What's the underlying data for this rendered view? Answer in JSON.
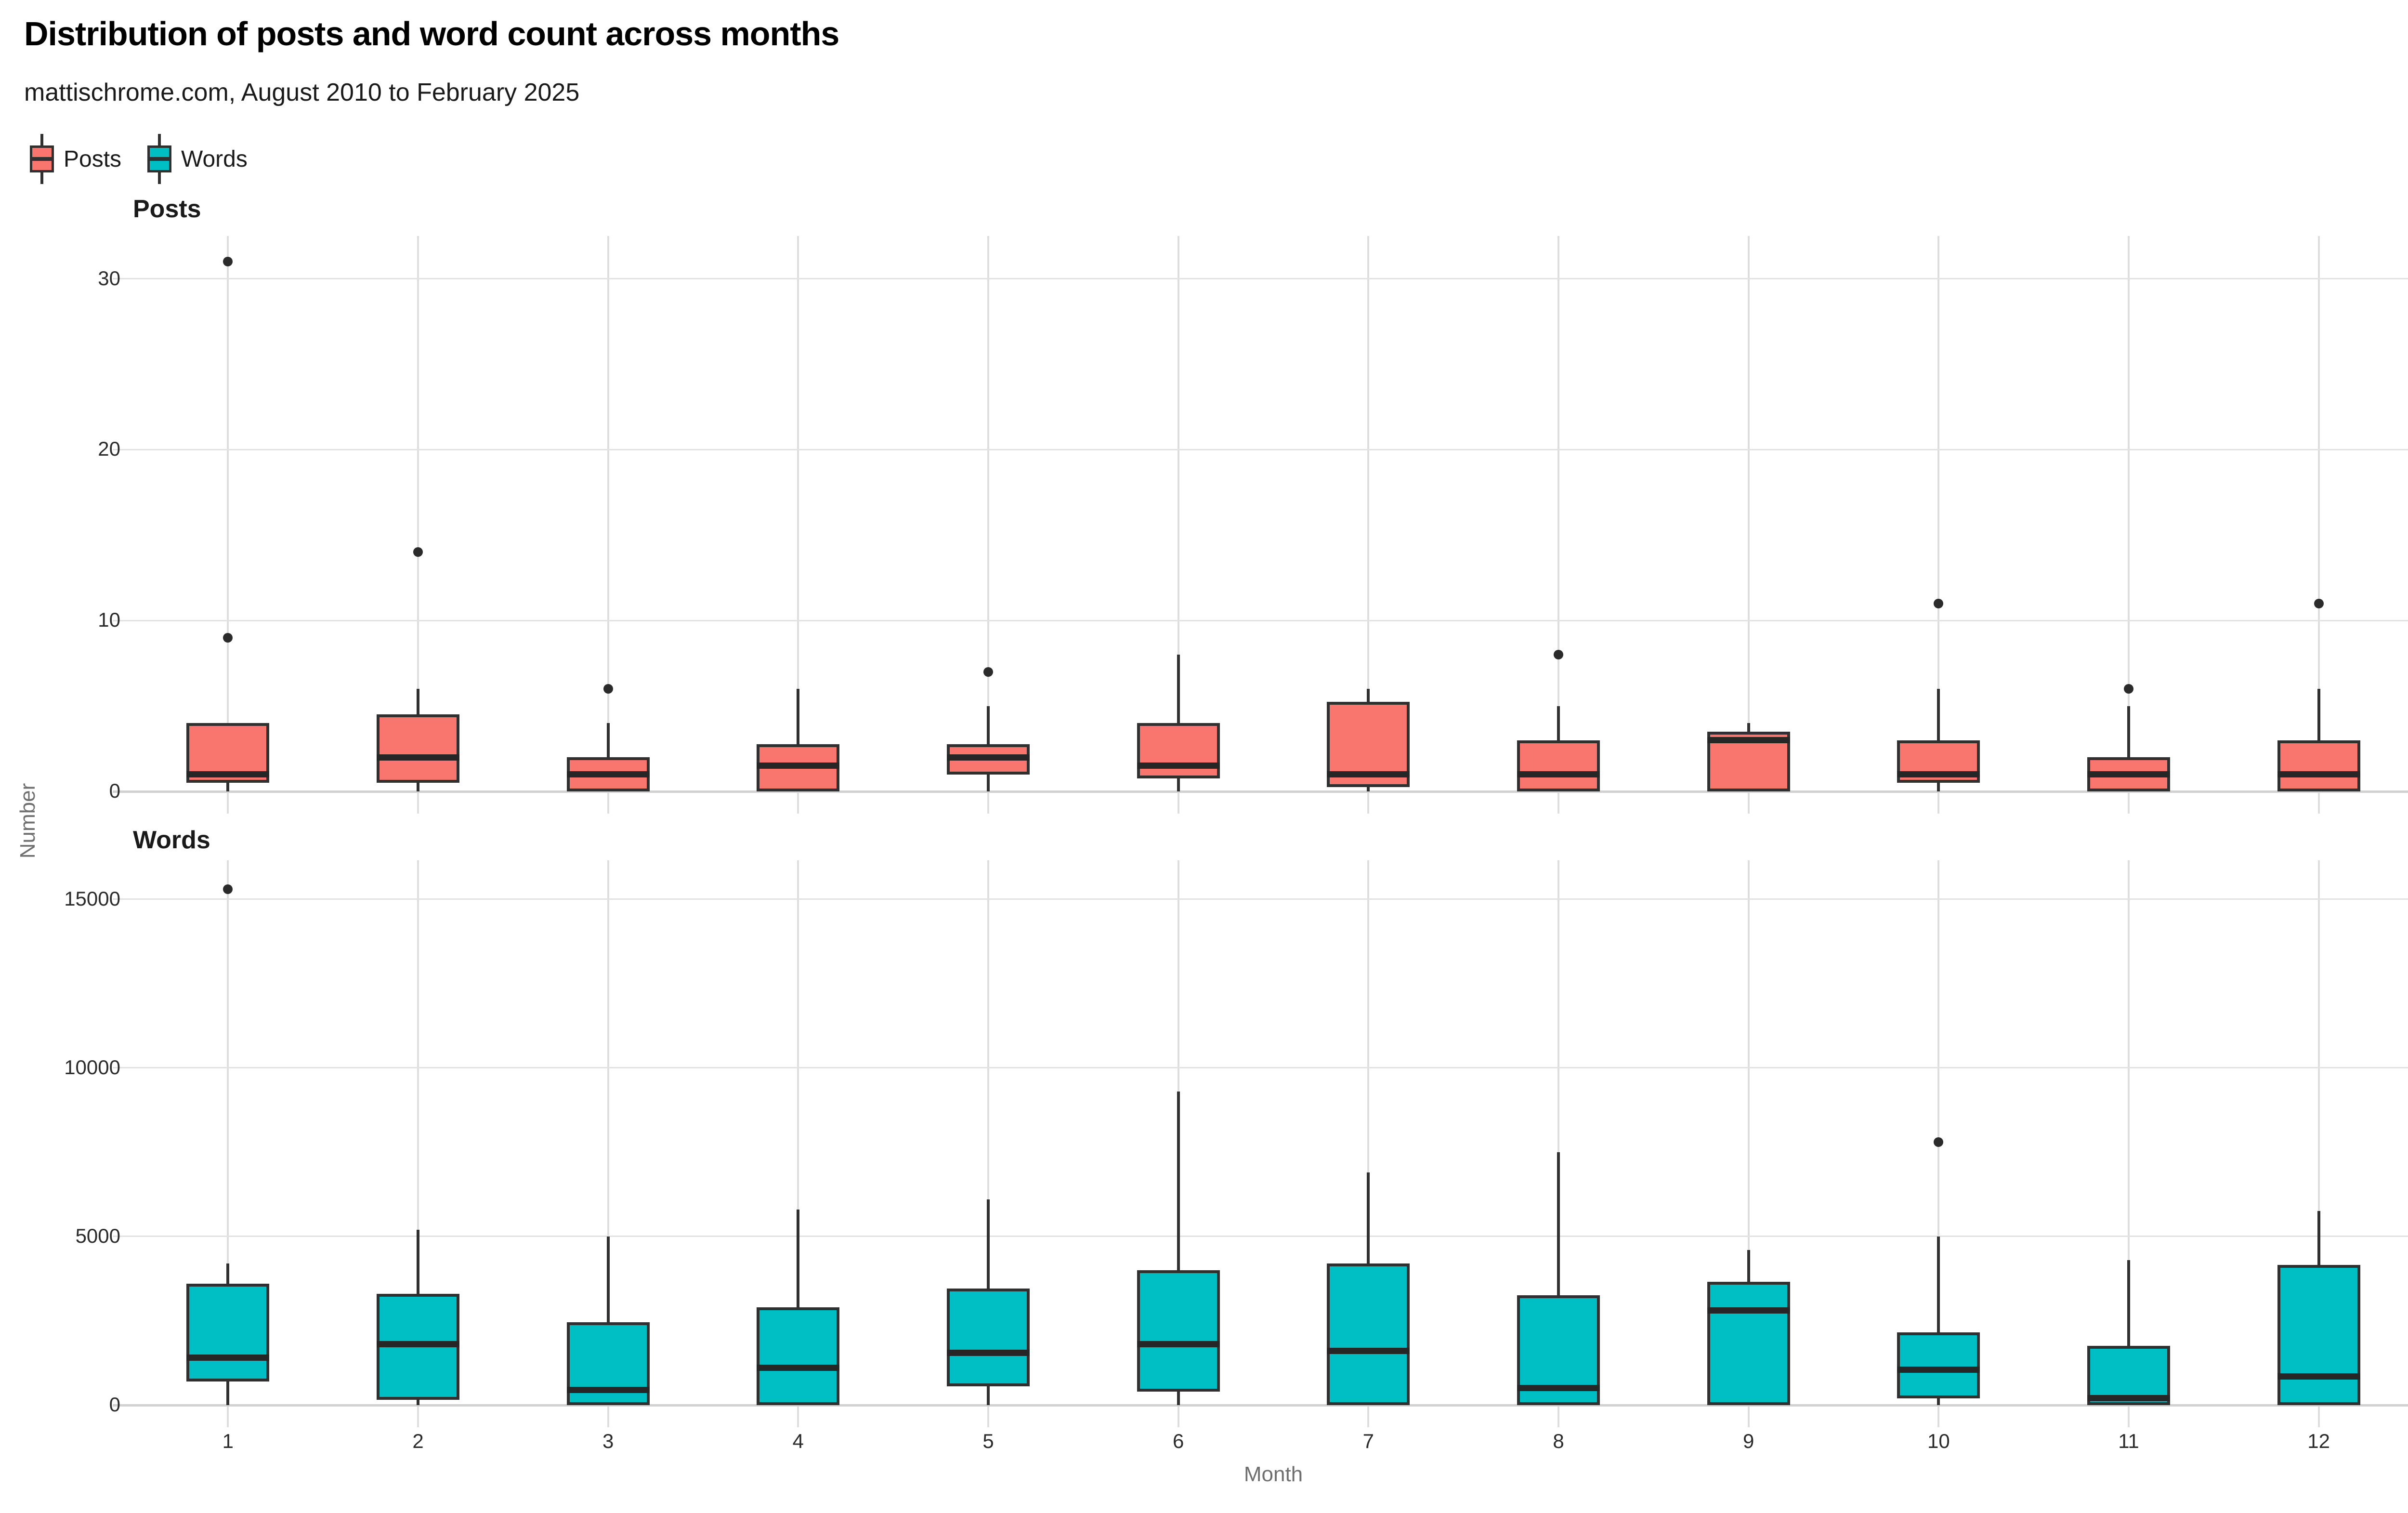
{
  "title": "Distribution of posts and word count across months",
  "subtitle": "mattischrome.com, August 2010 to February 2025",
  "legend": [
    {
      "label": "Posts",
      "color": "#F8766D"
    },
    {
      "label": "Words",
      "color": "#00BFC4"
    }
  ],
  "axis": {
    "x_title": "Month",
    "y_title": "Number",
    "x_ticks": [
      "1",
      "2",
      "3",
      "4",
      "5",
      "6",
      "7",
      "8",
      "9",
      "10",
      "11",
      "12"
    ]
  },
  "colors": {
    "posts_fill": "#F8766D",
    "words_fill": "#00BFC4",
    "box_outline": "#303030",
    "gridline": "#e2e2e2",
    "background": "#ffffff"
  },
  "chart_data": [
    {
      "type": "box",
      "facet": "Posts",
      "color": "#F8766D",
      "xlabel": "Month",
      "ylabel": "Number",
      "yticks": [
        0,
        10,
        20,
        30
      ],
      "ylim": [
        0,
        32.5
      ],
      "stats": [
        {
          "month": 1,
          "min": 0,
          "q1": 0.5,
          "median": 1,
          "q3": 4,
          "max": 4,
          "outliers": [
            9,
            31
          ]
        },
        {
          "month": 2,
          "min": 0,
          "q1": 0.5,
          "median": 2,
          "q3": 4.5,
          "max": 6,
          "outliers": [
            14
          ]
        },
        {
          "month": 3,
          "min": 0,
          "q1": 0,
          "median": 1,
          "q3": 2,
          "max": 4,
          "outliers": [
            6
          ]
        },
        {
          "month": 4,
          "min": 0,
          "q1": 0,
          "median": 1.5,
          "q3": 2.75,
          "max": 6,
          "outliers": []
        },
        {
          "month": 5,
          "min": 0,
          "q1": 1,
          "median": 2,
          "q3": 2.75,
          "max": 5,
          "outliers": [
            7
          ]
        },
        {
          "month": 6,
          "min": 0,
          "q1": 0.75,
          "median": 1.5,
          "q3": 4,
          "max": 8,
          "outliers": []
        },
        {
          "month": 7,
          "min": 0,
          "q1": 0.25,
          "median": 1,
          "q3": 5.25,
          "max": 6,
          "outliers": []
        },
        {
          "month": 8,
          "min": 0,
          "q1": 0,
          "median": 1,
          "q3": 3,
          "max": 5,
          "outliers": [
            8
          ]
        },
        {
          "month": 9,
          "min": 0,
          "q1": 0,
          "median": 3,
          "q3": 3.5,
          "max": 4,
          "outliers": []
        },
        {
          "month": 10,
          "min": 0,
          "q1": 0.5,
          "median": 1,
          "q3": 3,
          "max": 6,
          "outliers": [
            11
          ]
        },
        {
          "month": 11,
          "min": 0,
          "q1": 0,
          "median": 1,
          "q3": 2,
          "max": 5,
          "outliers": [
            6
          ]
        },
        {
          "month": 12,
          "min": 0,
          "q1": 0,
          "median": 1,
          "q3": 3,
          "max": 6,
          "outliers": [
            11
          ]
        }
      ]
    },
    {
      "type": "box",
      "facet": "Words",
      "color": "#00BFC4",
      "xlabel": "Month",
      "ylabel": "Number",
      "yticks": [
        0,
        5000,
        10000,
        15000
      ],
      "ylim": [
        0,
        16150
      ],
      "stats": [
        {
          "month": 1,
          "min": 0,
          "q1": 700,
          "median": 1400,
          "q3": 3600,
          "max": 4200,
          "outliers": [
            15300
          ]
        },
        {
          "month": 2,
          "min": 0,
          "q1": 150,
          "median": 1800,
          "q3": 3300,
          "max": 5200,
          "outliers": []
        },
        {
          "month": 3,
          "min": 0,
          "q1": 0,
          "median": 450,
          "q3": 2450,
          "max": 5000,
          "outliers": []
        },
        {
          "month": 4,
          "min": 0,
          "q1": 0,
          "median": 1100,
          "q3": 2900,
          "max": 5800,
          "outliers": []
        },
        {
          "month": 5,
          "min": 0,
          "q1": 550,
          "median": 1550,
          "q3": 3450,
          "max": 6100,
          "outliers": []
        },
        {
          "month": 6,
          "min": 0,
          "q1": 400,
          "median": 1800,
          "q3": 4000,
          "max": 9300,
          "outliers": []
        },
        {
          "month": 7,
          "min": 0,
          "q1": 0,
          "median": 1600,
          "q3": 4200,
          "max": 6900,
          "outliers": []
        },
        {
          "month": 8,
          "min": 0,
          "q1": 0,
          "median": 500,
          "q3": 3250,
          "max": 7500,
          "outliers": []
        },
        {
          "month": 9,
          "min": 0,
          "q1": 0,
          "median": 2800,
          "q3": 3650,
          "max": 4600,
          "outliers": []
        },
        {
          "month": 10,
          "min": 0,
          "q1": 200,
          "median": 1050,
          "q3": 2150,
          "max": 5000,
          "outliers": [
            7800
          ]
        },
        {
          "month": 11,
          "min": 0,
          "q1": 0,
          "median": 200,
          "q3": 1750,
          "max": 4300,
          "outliers": []
        },
        {
          "month": 12,
          "min": 0,
          "q1": 0,
          "median": 850,
          "q3": 4150,
          "max": 5750,
          "outliers": []
        }
      ]
    }
  ]
}
